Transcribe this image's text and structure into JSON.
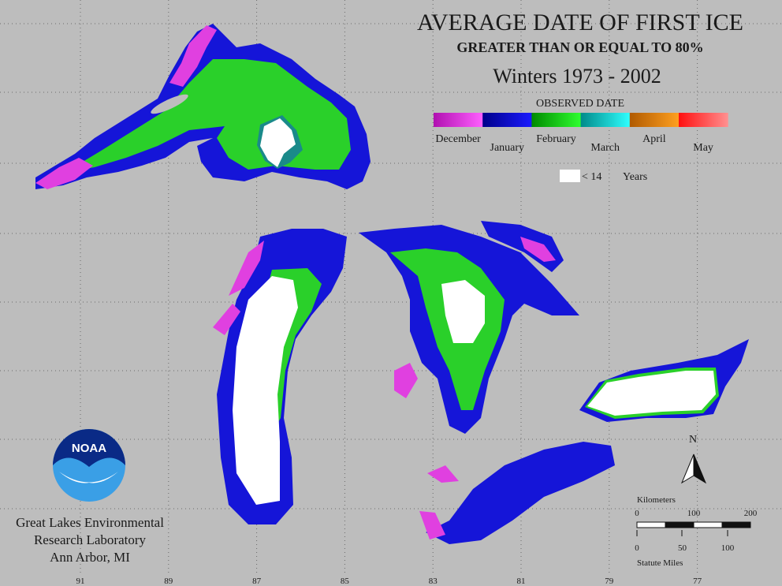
{
  "title": "AVERAGE DATE OF FIRST ICE",
  "subtitle": "GREATER THAN OR EQUAL TO 80%",
  "period": "Winters 1973 - 2002",
  "legend": {
    "title": "OBSERVED DATE",
    "months": [
      "December",
      "January",
      "February",
      "March",
      "April",
      "May"
    ],
    "insufficient": {
      "label": "< 14",
      "unit": "Years"
    }
  },
  "logo": "NOAA",
  "organization": [
    "Great Lakes Environmental",
    "Research Laboratory",
    "Ann Arbor, MI"
  ],
  "north": "N",
  "scale": {
    "km_label": "Kilometers",
    "km_ticks": [
      0,
      100,
      200
    ],
    "mi_label": "Statute Miles",
    "mi_ticks": [
      0,
      50,
      100
    ]
  },
  "longitudes": [
    91,
    89,
    87,
    85,
    83,
    81,
    79,
    77
  ]
}
